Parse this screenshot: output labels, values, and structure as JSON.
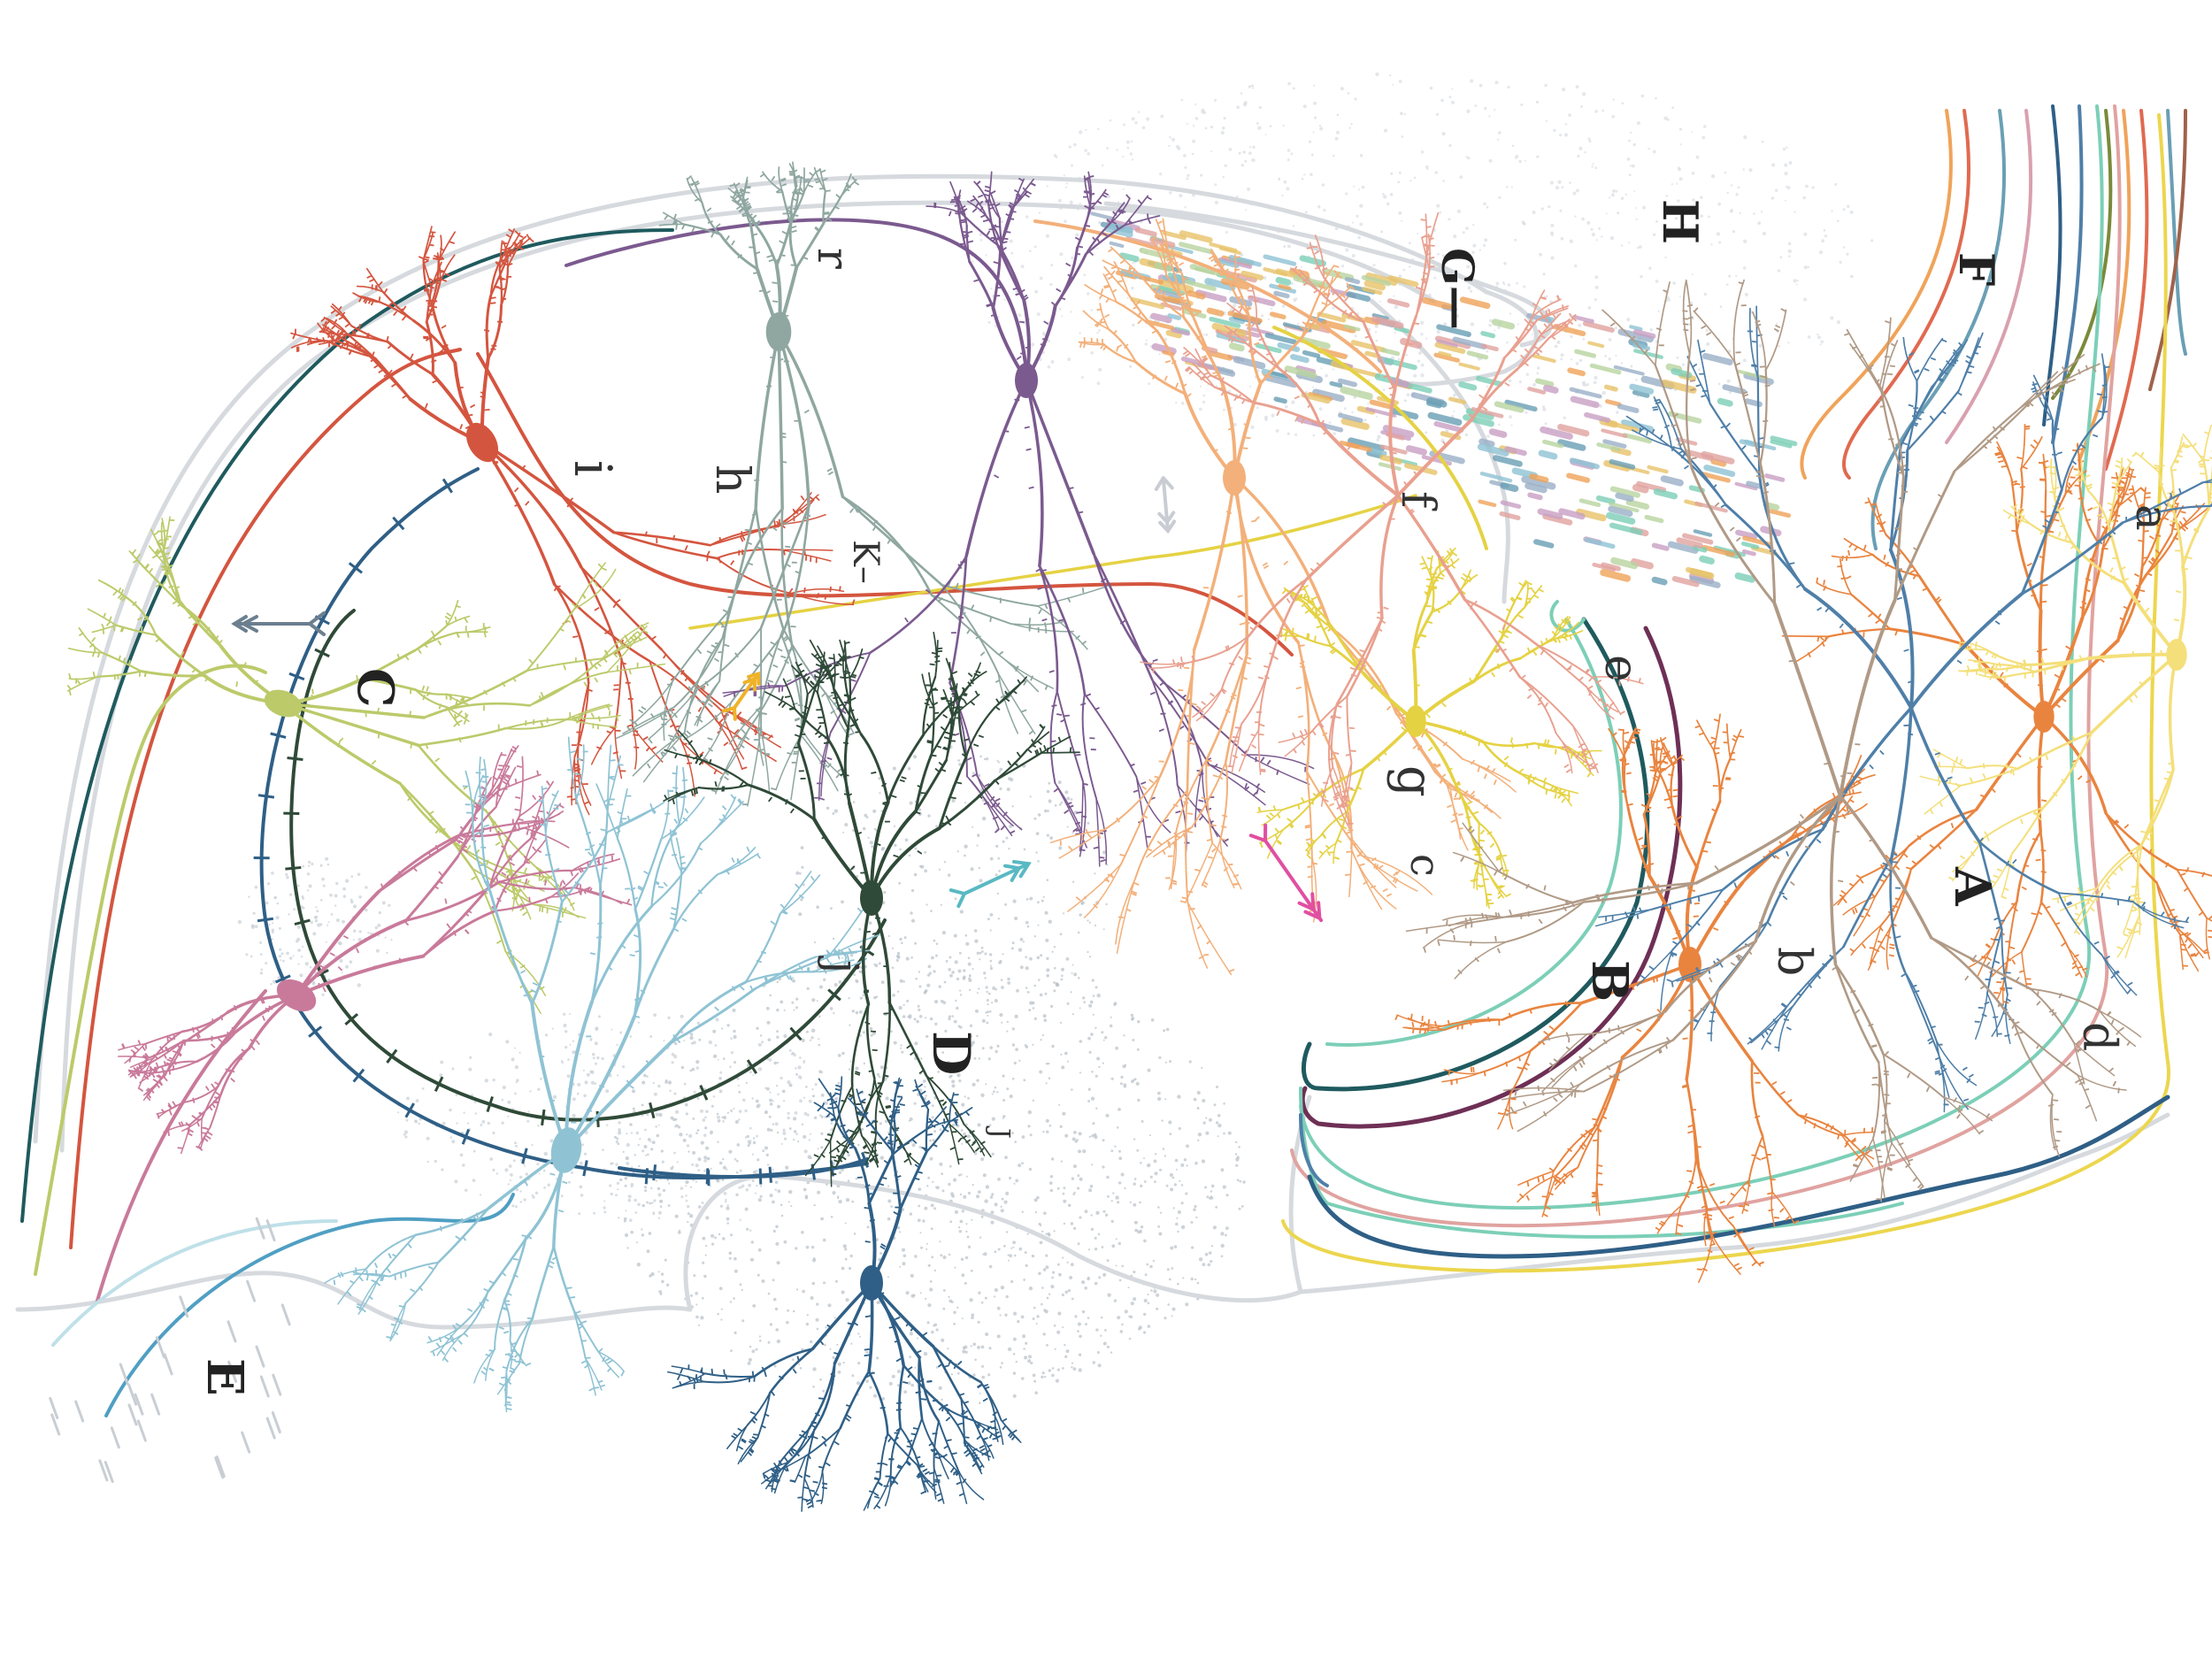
{
  "labels": {
    "A": "A",
    "B": "B",
    "C": "C",
    "D": "D",
    "E": "E",
    "F": "F",
    "G": "G—",
    "H": "H",
    "a": "a",
    "b": "b",
    "c": "c",
    "d": "d",
    "e": "e",
    "f": "f",
    "g": "g",
    "h": "h",
    "i": "i",
    "j": "j",
    "J": "J",
    "K": "K–",
    "r": "r"
  },
  "colors": {
    "red": "#d4553f",
    "navy": "#2f5f86",
    "teal_dark": "#1f5a5e",
    "dark_green": "#2f4a38",
    "lime": "#bcca6a",
    "sage": "#8fa7a0",
    "purple": "#7b5a8f",
    "peach": "#f3b07a",
    "orange": "#e9843f",
    "pink": "#c97a9a",
    "yellow": "#e5d243",
    "light_blue": "#8fc3d4",
    "mint": "#7ccfb7",
    "plum": "#6e2f55",
    "grey_outline": "#d6dade",
    "stipple": "#b8c0c8",
    "tan": "#b09a86",
    "blue_mid": "#4f7fa8",
    "magenta": "#e14fa2",
    "cyan_arrow": "#59b9c3",
    "gold_arrow": "#f0b228"
  }
}
